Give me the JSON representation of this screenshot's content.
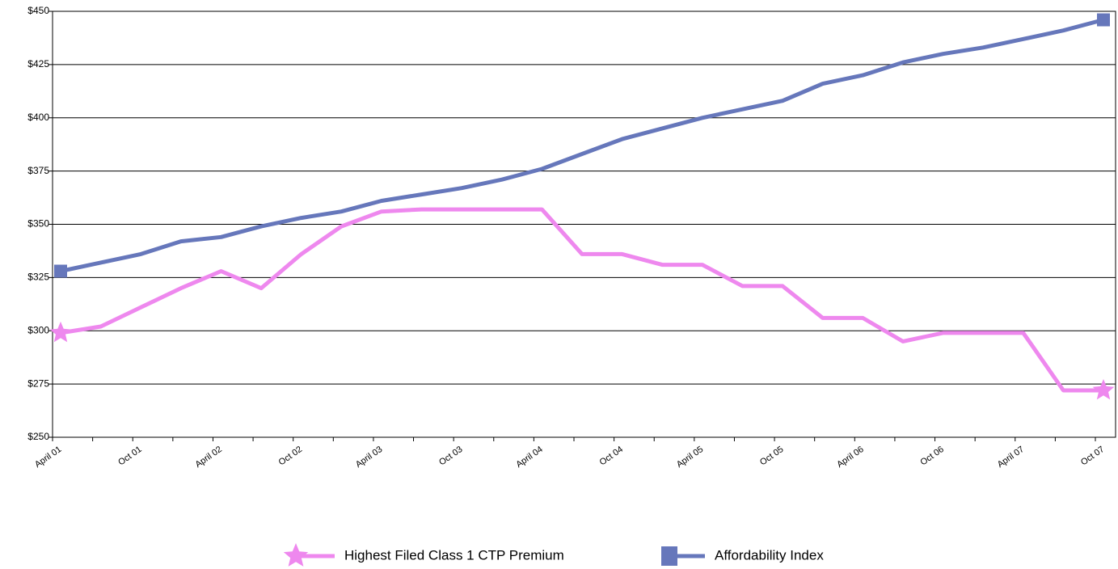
{
  "chart_data": {
    "type": "line",
    "categories": [
      "April 01",
      null,
      "Oct 01",
      null,
      "April 02",
      null,
      "Oct 02",
      null,
      "April 03",
      null,
      "Oct 03",
      null,
      "April 04",
      null,
      "Oct 04",
      null,
      "April 05",
      null,
      "Oct 05",
      null,
      "April 06",
      null,
      "Oct 06",
      null,
      "April 07",
      null,
      "Oct 07"
    ],
    "series": [
      {
        "name": "Highest Filed Class 1 CTP Premium",
        "color": "#ee88ee",
        "marker": "star",
        "values": [
          299,
          302,
          311,
          320,
          328,
          320,
          336,
          349,
          356,
          357,
          357,
          357,
          357,
          336,
          336,
          331,
          331,
          321,
          321,
          306,
          306,
          295,
          299,
          299,
          299,
          272,
          272
        ]
      },
      {
        "name": "Affordability Index",
        "color": "#6677bb",
        "marker": "square",
        "values": [
          328,
          332,
          336,
          342,
          344,
          349,
          353,
          356,
          361,
          364,
          367,
          371,
          376,
          383,
          390,
          395,
          400,
          404,
          408,
          416,
          420,
          426,
          430,
          433,
          437,
          441,
          446
        ]
      }
    ],
    "ylim": [
      250,
      450
    ],
    "yticks": [
      {
        "value": 250,
        "label": "$250"
      },
      {
        "value": 275,
        "label": "$275"
      },
      {
        "value": 300,
        "label": "$300"
      },
      {
        "value": 325,
        "label": "$325"
      },
      {
        "value": 350,
        "label": "$350"
      },
      {
        "value": 375,
        "label": "$375"
      },
      {
        "value": 400,
        "label": "$400"
      },
      {
        "value": 425,
        "label": "$425"
      },
      {
        "value": 450,
        "label": "$450"
      }
    ],
    "grid": true,
    "legend": "bottom"
  }
}
